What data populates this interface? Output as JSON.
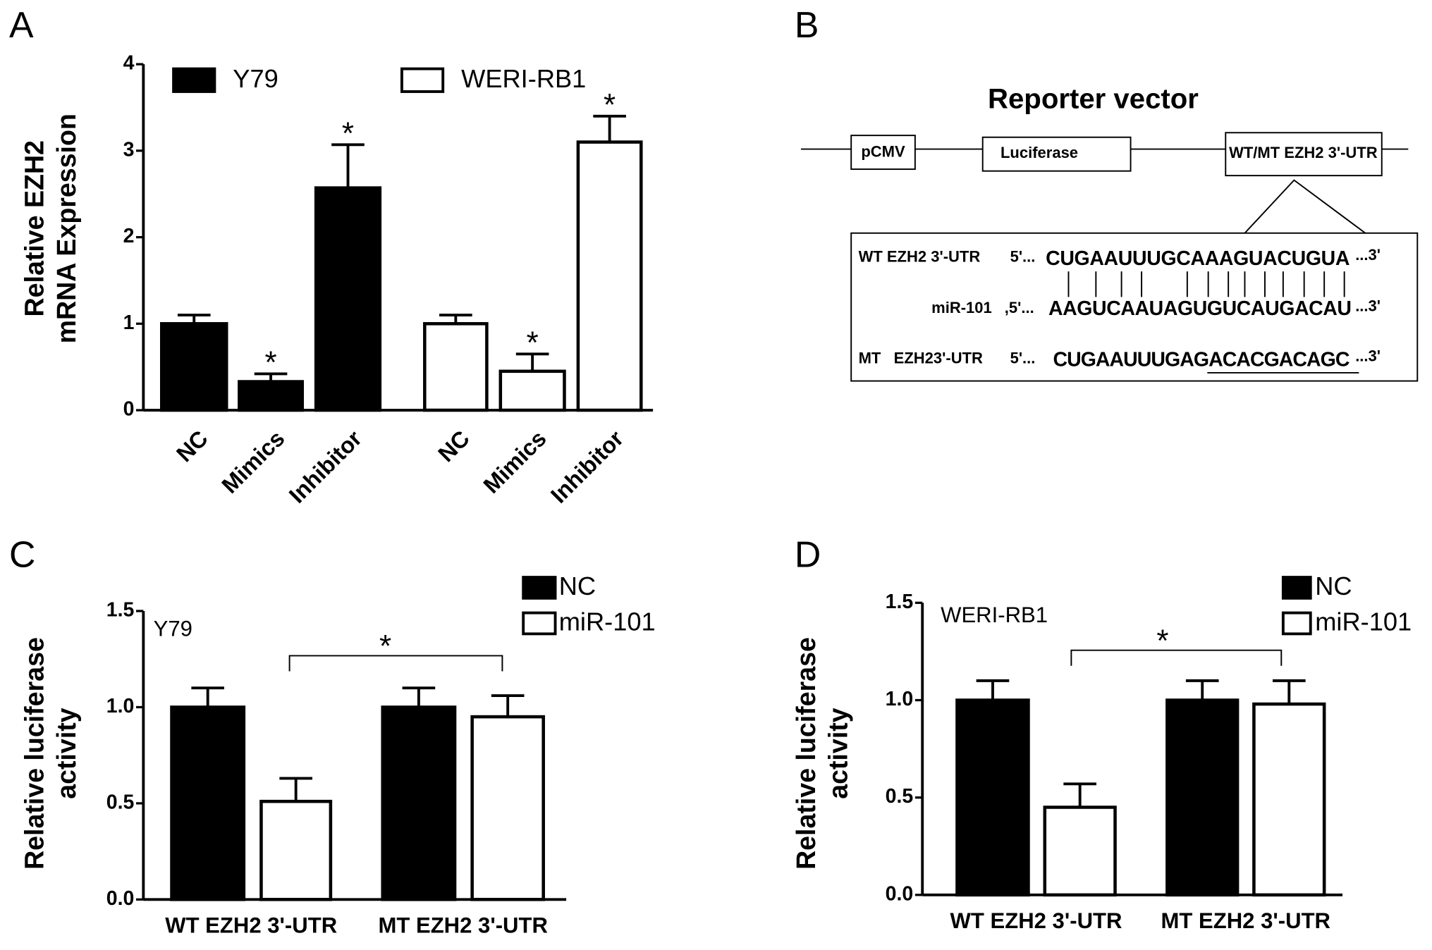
{
  "chart_data": [
    {
      "type": "bar",
      "panel_label": "A",
      "ylabel": [
        "Relative EZH2",
        "mRNA Expression"
      ],
      "categories": [
        "NC",
        "Mimics",
        "Inhibitor"
      ],
      "series": [
        {
          "name": "Y79",
          "color": "#000000",
          "values": [
            1.0,
            0.33,
            2.57
          ],
          "errors": [
            0.1,
            0.09,
            0.5
          ],
          "markers": [
            null,
            "*",
            "*"
          ]
        },
        {
          "name": "WERI-RB1",
          "color": "#ffffff",
          "values": [
            1.0,
            0.45,
            3.1
          ],
          "errors": [
            0.1,
            0.2,
            0.3
          ],
          "markers": [
            null,
            "*",
            "*"
          ]
        }
      ],
      "ylim": [
        0,
        4
      ],
      "yticks": [
        0,
        1,
        2,
        3,
        4
      ],
      "grid": false
    },
    {
      "type": "bar",
      "panel_label": "C",
      "subtitle": "Y79",
      "ylabel": [
        "Relative luciferase",
        "activity"
      ],
      "categories": [
        "WT EZH2 3'-UTR",
        "MT EZH2 3'-UTR"
      ],
      "series": [
        {
          "name": "NC",
          "color": "#000000",
          "values": [
            1.0,
            1.0
          ],
          "errors": [
            0.1,
            0.1
          ]
        },
        {
          "name": "miR-101",
          "color": "#ffffff",
          "values": [
            0.51,
            0.95
          ],
          "errors": [
            0.12,
            0.11
          ]
        }
      ],
      "annotation": "*",
      "ylim": [
        0,
        1.5
      ],
      "yticks": [
        {
          "value": 0,
          "label": "0.0"
        },
        0.5,
        {
          "value": 1,
          "label": "1.0"
        },
        1.5
      ],
      "grid": false
    },
    {
      "type": "bar",
      "panel_label": "D",
      "subtitle": "WERI-RB1",
      "ylabel": [
        "Relative luciferase",
        "activity"
      ],
      "categories": [
        "WT EZH2 3'-UTR",
        "MT EZH2 3'-UTR"
      ],
      "series": [
        {
          "name": "NC",
          "color": "#000000",
          "values": [
            1.0,
            1.0
          ],
          "errors": [
            0.1,
            0.1
          ]
        },
        {
          "name": "miR-101",
          "color": "#ffffff",
          "values": [
            0.45,
            0.98
          ],
          "errors": [
            0.12,
            0.12
          ]
        }
      ],
      "annotation": "*",
      "ylim": [
        0,
        1.5
      ],
      "yticks": [
        {
          "value": 0,
          "label": "0.0"
        },
        0.5,
        {
          "value": 1,
          "label": "1.0"
        },
        1.5
      ],
      "grid": false
    }
  ],
  "diagram": {
    "panel_label": "B",
    "title": "Reporter vector",
    "elements": [
      "pCMV",
      "Luciferase",
      "WT/MT EZH2 3'-UTR"
    ],
    "rows": [
      {
        "label": "WT EZH2 3'-UTR",
        "prime5": "5'...",
        "sequence": "CUGAAUUUGCAAAGUACUGUA",
        "prime3": "...3'"
      },
      {
        "label": "miR-101",
        "prime5": ",5'...",
        "sequence": "AAGUCAAUAGUGUCAUGACAU",
        "prime3": "...3'"
      },
      {
        "label": "MT   EZH23'-UTR",
        "prime5": "5'...",
        "sequence": "CUGAAUUUGAGACACGACAGC",
        "prime3": "...3'"
      }
    ]
  }
}
